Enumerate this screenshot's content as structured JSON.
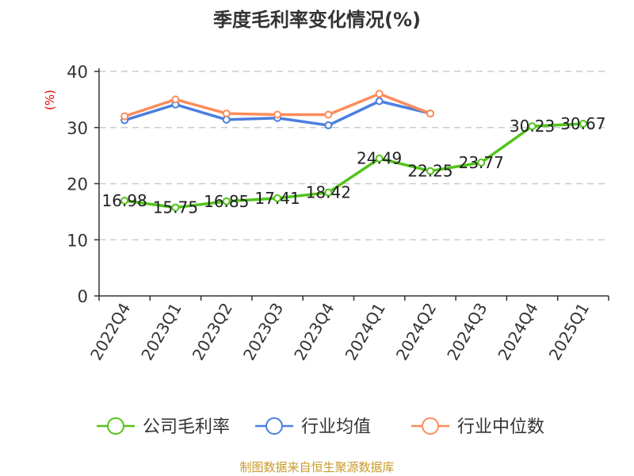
{
  "chart_data": {
    "type": "line",
    "title": "季度毛利率变化情况(%)",
    "ylabel": "(%)",
    "xlabel": "",
    "ylim": [
      0,
      40
    ],
    "yticks": [
      0,
      10,
      20,
      30,
      40
    ],
    "grid": true,
    "categories": [
      "2022Q4",
      "2023Q1",
      "2023Q2",
      "2023Q3",
      "2023Q4",
      "2024Q1",
      "2024Q2",
      "2024Q3",
      "2024Q4",
      "2025Q1"
    ],
    "series": [
      {
        "name": "公司毛利率",
        "color": "#52c41a",
        "values": [
          16.98,
          15.75,
          16.85,
          17.41,
          18.42,
          24.49,
          22.25,
          23.77,
          30.23,
          30.67
        ],
        "labels": true
      },
      {
        "name": "行业均值",
        "color": "#4a7fe0",
        "values": [
          31.3,
          34.1,
          31.4,
          31.7,
          30.4,
          34.7,
          32.5,
          null,
          null,
          null
        ],
        "labels": false
      },
      {
        "name": "行业中位数",
        "color": "#fc8c5a",
        "values": [
          32.0,
          35.0,
          32.5,
          32.3,
          32.3,
          36.0,
          32.5,
          null,
          null,
          null
        ],
        "labels": false
      }
    ],
    "legend_position": "bottom",
    "source": "制图数据来自恒生聚源数据库"
  }
}
